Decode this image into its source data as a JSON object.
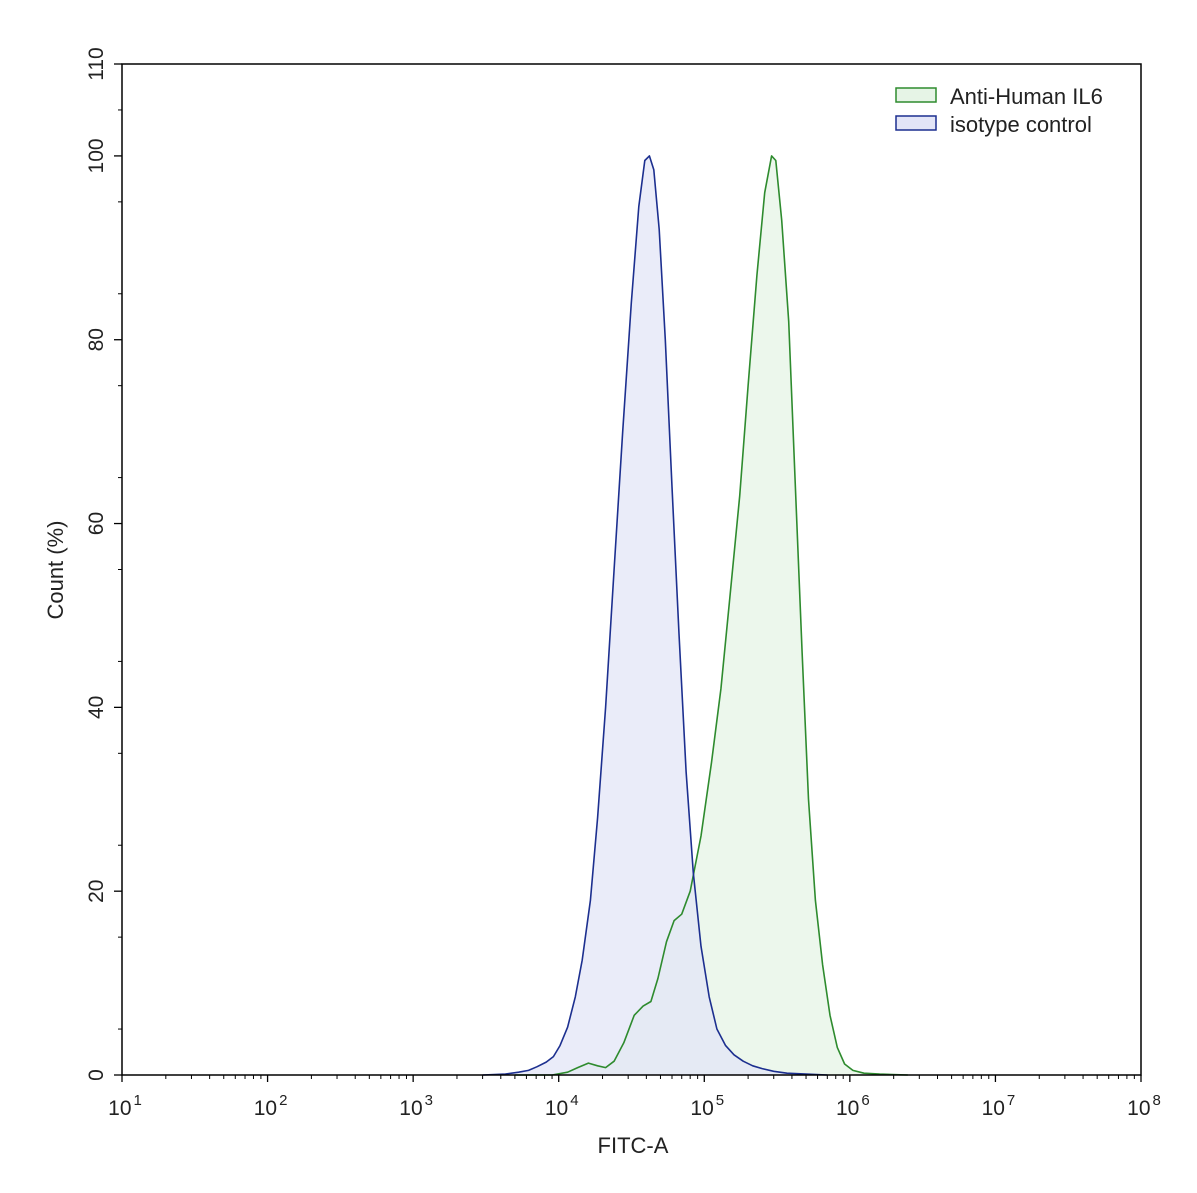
{
  "chart_data": {
    "type": "area",
    "title": "",
    "xlabel": "FITC-A",
    "ylabel": "Count  (%)",
    "xscale": "log",
    "xlim": [
      10,
      100000000
    ],
    "ylim": [
      0,
      110
    ],
    "x_ticks": [
      {
        "value": 10,
        "base": "10",
        "exp": "1"
      },
      {
        "value": 100,
        "base": "10",
        "exp": "2"
      },
      {
        "value": 1000,
        "base": "10",
        "exp": "3"
      },
      {
        "value": 10000,
        "base": "10",
        "exp": "4"
      },
      {
        "value": 100000,
        "base": "10",
        "exp": "5"
      },
      {
        "value": 1000000,
        "base": "10",
        "exp": "6"
      },
      {
        "value": 10000000,
        "base": "10",
        "exp": "7"
      },
      {
        "value": 100000000,
        "base": "10",
        "exp": "8"
      }
    ],
    "y_ticks": [
      "0",
      "20",
      "40",
      "60",
      "80",
      "100",
      "110"
    ],
    "grid": false,
    "legend_position": "top-right",
    "series": [
      {
        "name": "Anti-Human IL6",
        "stroke": "#2e8b2e",
        "fill": "#e6f4e6",
        "points": [
          [
            5000,
            0
          ],
          [
            9000,
            0
          ],
          [
            11500,
            0.3
          ],
          [
            13500,
            0.8
          ],
          [
            16000,
            1.3
          ],
          [
            18500,
            1.0
          ],
          [
            21000,
            0.8
          ],
          [
            24000,
            1.5
          ],
          [
            28000,
            3.5
          ],
          [
            33000,
            6.5
          ],
          [
            38000,
            7.5
          ],
          [
            43000,
            8.0
          ],
          [
            48000,
            10.5
          ],
          [
            55000,
            14.5
          ],
          [
            62000,
            16.8
          ],
          [
            70000,
            17.5
          ],
          [
            80000,
            20.0
          ],
          [
            95000,
            26.0
          ],
          [
            112000,
            34.0
          ],
          [
            130000,
            42.0
          ],
          [
            150000,
            52.0
          ],
          [
            175000,
            63.0
          ],
          [
            200000,
            75.0
          ],
          [
            230000,
            87.0
          ],
          [
            260000,
            96.0
          ],
          [
            290000,
            100.0
          ],
          [
            310000,
            99.5
          ],
          [
            340000,
            93.0
          ],
          [
            380000,
            82.0
          ],
          [
            420000,
            65.0
          ],
          [
            470000,
            46.0
          ],
          [
            520000,
            30.0
          ],
          [
            580000,
            19.0
          ],
          [
            650000,
            12.0
          ],
          [
            730000,
            6.5
          ],
          [
            820000,
            3.0
          ],
          [
            920000,
            1.2
          ],
          [
            1050000,
            0.5
          ],
          [
            1250000,
            0.2
          ],
          [
            1600000,
            0.1
          ],
          [
            2500000,
            0
          ]
        ]
      },
      {
        "name": "isotype control",
        "stroke": "#1c2f8f",
        "fill": "#e3e5f7",
        "points": [
          [
            3000,
            0
          ],
          [
            4300,
            0.1
          ],
          [
            5300,
            0.3
          ],
          [
            6200,
            0.5
          ],
          [
            7100,
            0.9
          ],
          [
            8200,
            1.4
          ],
          [
            9200,
            2.0
          ],
          [
            10200,
            3.2
          ],
          [
            11500,
            5.2
          ],
          [
            13000,
            8.5
          ],
          [
            14500,
            12.5
          ],
          [
            16500,
            19.0
          ],
          [
            18500,
            28.0
          ],
          [
            21000,
            40.0
          ],
          [
            24000,
            55.0
          ],
          [
            27500,
            70.0
          ],
          [
            31500,
            84.0
          ],
          [
            35500,
            94.5
          ],
          [
            39000,
            99.5
          ],
          [
            42000,
            100.0
          ],
          [
            45000,
            98.5
          ],
          [
            49000,
            92.0
          ],
          [
            54000,
            80.0
          ],
          [
            60000,
            64.0
          ],
          [
            67000,
            48.0
          ],
          [
            75000,
            33.0
          ],
          [
            84000,
            22.0
          ],
          [
            95000,
            14.0
          ],
          [
            108000,
            8.5
          ],
          [
            122000,
            5.0
          ],
          [
            140000,
            3.2
          ],
          [
            160000,
            2.2
          ],
          [
            185000,
            1.5
          ],
          [
            215000,
            1.0
          ],
          [
            250000,
            0.7
          ],
          [
            300000,
            0.4
          ],
          [
            370000,
            0.2
          ],
          [
            500000,
            0.1
          ],
          [
            700000,
            0
          ]
        ]
      }
    ]
  }
}
